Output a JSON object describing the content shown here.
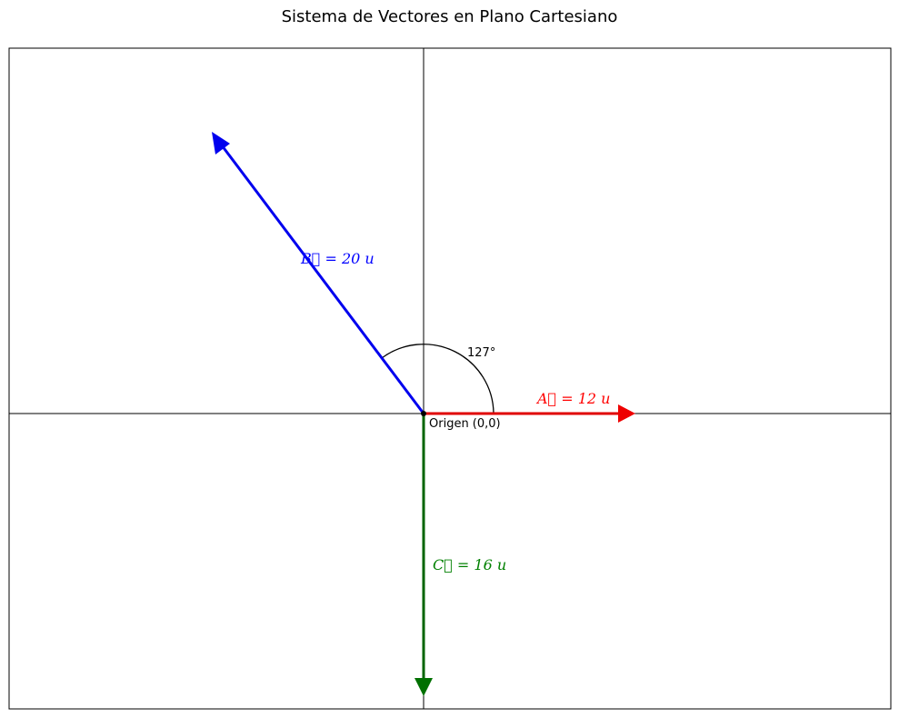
{
  "title": "Sistema de Vectores en Plano Cartesiano",
  "origin_label": "Origen (0,0)",
  "angle_label": "127°",
  "vectors": [
    {
      "id": "A",
      "label": "A = 12 u",
      "magnitude": 12,
      "angle_deg": 0,
      "color": "#ff0000"
    },
    {
      "id": "B",
      "label": "B = 20 u",
      "magnitude": 20,
      "angle_deg": 127,
      "color": "#0000ff"
    },
    {
      "id": "C",
      "label": "C = 16 u",
      "magnitude": 16,
      "angle_deg": 270,
      "color": "#008000"
    }
  ]
}
